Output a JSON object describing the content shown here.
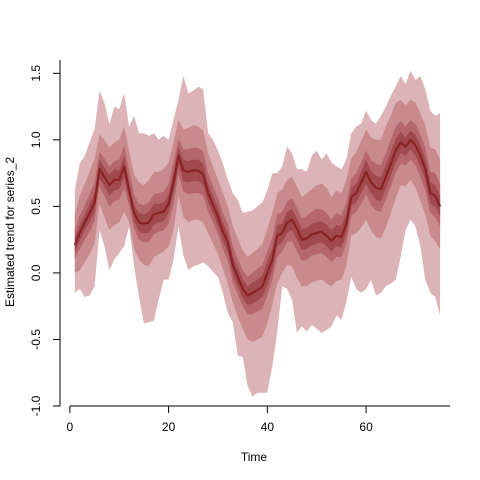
{
  "chart_data": {
    "type": "area",
    "title": "",
    "xlabel": "Time",
    "ylabel": "Estimated trend for series_2",
    "xlim": [
      -2,
      77
    ],
    "ylim": [
      -1.0,
      1.6
    ],
    "x_ticks": [
      0,
      20,
      40,
      60
    ],
    "y_ticks": [
      -1.0,
      -0.5,
      0.0,
      0.5,
      1.0,
      1.5
    ],
    "x_tick_labels": [
      "0",
      "20",
      "40",
      "60"
    ],
    "y_tick_labels": [
      "-1.0",
      "-0.5",
      "0.0",
      "0.5",
      "1.0",
      "1.5"
    ],
    "grid": false,
    "colors": {
      "outer_band": "#dcb3b6",
      "mid_outer_band": "#c98a8e",
      "mid_inner_band": "#b5676c",
      "inner_band": "#a04a4f",
      "median_line": "#8b2326"
    },
    "x": [
      1,
      2,
      3,
      4,
      5,
      6,
      7,
      8,
      9,
      10,
      11,
      12,
      13,
      14,
      15,
      16,
      17,
      18,
      19,
      20,
      21,
      22,
      23,
      24,
      25,
      26,
      27,
      28,
      29,
      30,
      31,
      32,
      33,
      34,
      35,
      36,
      37,
      38,
      39,
      40,
      41,
      42,
      43,
      44,
      45,
      46,
      47,
      48,
      49,
      50,
      51,
      52,
      53,
      54,
      55,
      56,
      57,
      58,
      59,
      60,
      61,
      62,
      63,
      64,
      65,
      66,
      67,
      68,
      69,
      70,
      71,
      72,
      73,
      74,
      75
    ],
    "median": [
      0.21,
      0.3,
      0.38,
      0.45,
      0.53,
      0.78,
      0.72,
      0.66,
      0.7,
      0.7,
      0.8,
      0.62,
      0.45,
      0.38,
      0.37,
      0.38,
      0.44,
      0.45,
      0.46,
      0.52,
      0.68,
      0.88,
      0.77,
      0.76,
      0.77,
      0.77,
      0.74,
      0.6,
      0.51,
      0.42,
      0.31,
      0.23,
      0.06,
      -0.03,
      -0.12,
      -0.17,
      -0.15,
      -0.13,
      -0.1,
      0.0,
      0.1,
      0.28,
      0.3,
      0.38,
      0.4,
      0.33,
      0.25,
      0.26,
      0.29,
      0.3,
      0.31,
      0.28,
      0.24,
      0.28,
      0.27,
      0.37,
      0.57,
      0.6,
      0.68,
      0.76,
      0.68,
      0.64,
      0.63,
      0.72,
      0.82,
      0.92,
      0.98,
      0.95,
      1.0,
      0.96,
      0.88,
      0.78,
      0.6,
      0.58,
      0.5
    ],
    "series": [
      {
        "lower": [
          -0.15,
          -0.12,
          -0.18,
          -0.17,
          -0.1,
          0.32,
          0.2,
          0.02,
          0.1,
          0.15,
          0.2,
          0.35,
          0.05,
          -0.18,
          -0.38,
          -0.37,
          -0.36,
          -0.2,
          -0.05,
          -0.05,
          0.1,
          0.35,
          0.13,
          0.02,
          0.05,
          0.06,
          0.08,
          0.05,
          0.01,
          -0.03,
          -0.15,
          -0.3,
          -0.37,
          -0.62,
          -0.63,
          -0.85,
          -0.93,
          -0.9,
          -0.9,
          -0.9,
          -0.7,
          -0.45,
          -0.1,
          -0.12,
          -0.2,
          -0.45,
          -0.4,
          -0.44,
          -0.39,
          -0.42,
          -0.45,
          -0.43,
          -0.4,
          -0.32,
          -0.35,
          -0.22,
          -0.03,
          -0.12,
          -0.15,
          -0.12,
          -0.05,
          -0.17,
          -0.15,
          -0.1,
          -0.08,
          -0.05,
          0.12,
          0.32,
          0.4,
          0.35,
          0.2,
          -0.05,
          -0.15,
          -0.18,
          -0.32
        ],
        "upper": [
          0.62,
          0.82,
          0.88,
          0.98,
          1.08,
          1.37,
          1.28,
          1.12,
          1.25,
          1.23,
          1.35,
          1.1,
          1.18,
          1.05,
          1.05,
          1.03,
          1.05,
          1.0,
          1.03,
          1.0,
          1.15,
          1.3,
          1.48,
          1.35,
          1.37,
          1.4,
          1.38,
          1.05,
          1.0,
          0.92,
          0.82,
          0.7,
          0.6,
          0.55,
          0.45,
          0.46,
          0.47,
          0.5,
          0.53,
          0.62,
          0.75,
          0.75,
          0.8,
          0.95,
          0.9,
          0.78,
          0.78,
          0.76,
          0.88,
          0.92,
          0.85,
          0.9,
          0.83,
          0.8,
          0.78,
          0.85,
          1.05,
          1.1,
          1.12,
          1.22,
          1.15,
          1.12,
          1.18,
          1.25,
          1.33,
          1.4,
          1.48,
          1.42,
          1.52,
          1.45,
          1.48,
          1.38,
          1.22,
          1.18,
          1.2
        ]
      },
      {
        "lower": [
          0.0,
          0.02,
          0.08,
          0.14,
          0.22,
          0.52,
          0.42,
          0.32,
          0.36,
          0.38,
          0.46,
          0.38,
          0.18,
          0.1,
          0.06,
          0.05,
          0.12,
          0.14,
          0.16,
          0.2,
          0.32,
          0.58,
          0.42,
          0.38,
          0.4,
          0.4,
          0.38,
          0.3,
          0.22,
          0.14,
          0.03,
          -0.08,
          -0.22,
          -0.33,
          -0.42,
          -0.5,
          -0.52,
          -0.5,
          -0.48,
          -0.38,
          -0.24,
          -0.08,
          0.0,
          0.06,
          0.05,
          -0.04,
          -0.1,
          -0.1,
          -0.07,
          -0.06,
          -0.05,
          -0.08,
          -0.1,
          -0.06,
          -0.05,
          0.05,
          0.28,
          0.3,
          0.34,
          0.4,
          0.32,
          0.27,
          0.26,
          0.34,
          0.45,
          0.56,
          0.66,
          0.65,
          0.7,
          0.64,
          0.54,
          0.44,
          0.28,
          0.24,
          0.18
        ],
        "upper": [
          0.44,
          0.58,
          0.67,
          0.76,
          0.86,
          1.04,
          1.0,
          0.94,
          0.98,
          1.0,
          1.1,
          0.92,
          0.74,
          0.68,
          0.66,
          0.7,
          0.76,
          0.76,
          0.78,
          0.83,
          0.98,
          1.15,
          1.08,
          1.09,
          1.11,
          1.1,
          1.07,
          0.9,
          0.8,
          0.7,
          0.6,
          0.5,
          0.35,
          0.26,
          0.17,
          0.12,
          0.15,
          0.18,
          0.22,
          0.33,
          0.45,
          0.6,
          0.63,
          0.7,
          0.72,
          0.65,
          0.57,
          0.6,
          0.63,
          0.66,
          0.67,
          0.64,
          0.57,
          0.62,
          0.6,
          0.7,
          0.86,
          0.91,
          0.99,
          1.08,
          1.02,
          1.0,
          1.0,
          1.1,
          1.18,
          1.28,
          1.3,
          1.26,
          1.3,
          1.28,
          1.2,
          1.11,
          0.94,
          0.93,
          0.85
        ]
      },
      {
        "lower": [
          0.11,
          0.18,
          0.25,
          0.31,
          0.39,
          0.65,
          0.58,
          0.5,
          0.54,
          0.55,
          0.64,
          0.51,
          0.33,
          0.25,
          0.23,
          0.23,
          0.29,
          0.31,
          0.32,
          0.37,
          0.52,
          0.74,
          0.61,
          0.59,
          0.6,
          0.6,
          0.58,
          0.46,
          0.38,
          0.29,
          0.18,
          0.09,
          -0.07,
          -0.16,
          -0.25,
          -0.31,
          -0.31,
          -0.29,
          -0.27,
          -0.17,
          -0.05,
          0.12,
          0.16,
          0.23,
          0.24,
          0.16,
          0.09,
          0.1,
          0.13,
          0.14,
          0.15,
          0.12,
          0.08,
          0.12,
          0.12,
          0.22,
          0.43,
          0.46,
          0.52,
          0.59,
          0.51,
          0.47,
          0.46,
          0.55,
          0.65,
          0.75,
          0.82,
          0.81,
          0.85,
          0.81,
          0.72,
          0.62,
          0.45,
          0.42,
          0.35
        ],
        "upper": [
          0.32,
          0.43,
          0.51,
          0.59,
          0.68,
          0.91,
          0.86,
          0.8,
          0.84,
          0.85,
          0.96,
          0.77,
          0.59,
          0.52,
          0.51,
          0.53,
          0.59,
          0.6,
          0.61,
          0.67,
          0.83,
          1.01,
          0.93,
          0.93,
          0.94,
          0.94,
          0.91,
          0.75,
          0.65,
          0.56,
          0.45,
          0.37,
          0.2,
          0.11,
          0.02,
          -0.03,
          0.0,
          0.03,
          0.06,
          0.16,
          0.27,
          0.44,
          0.46,
          0.54,
          0.56,
          0.49,
          0.41,
          0.43,
          0.46,
          0.48,
          0.48,
          0.45,
          0.4,
          0.45,
          0.43,
          0.53,
          0.71,
          0.75,
          0.83,
          0.92,
          0.85,
          0.82,
          0.81,
          0.9,
          1.0,
          1.1,
          1.14,
          1.1,
          1.15,
          1.12,
          1.04,
          0.94,
          0.76,
          0.75,
          0.67
        ]
      },
      {
        "lower": [
          0.16,
          0.24,
          0.32,
          0.38,
          0.46,
          0.71,
          0.65,
          0.58,
          0.62,
          0.63,
          0.72,
          0.56,
          0.39,
          0.31,
          0.3,
          0.3,
          0.36,
          0.38,
          0.39,
          0.45,
          0.6,
          0.81,
          0.69,
          0.68,
          0.69,
          0.69,
          0.66,
          0.53,
          0.44,
          0.35,
          0.24,
          0.16,
          -0.01,
          -0.1,
          -0.19,
          -0.24,
          -0.23,
          -0.21,
          -0.18,
          -0.09,
          0.02,
          0.2,
          0.23,
          0.3,
          0.32,
          0.25,
          0.17,
          0.18,
          0.21,
          0.22,
          0.23,
          0.2,
          0.16,
          0.2,
          0.19,
          0.29,
          0.5,
          0.53,
          0.6,
          0.67,
          0.6,
          0.55,
          0.54,
          0.63,
          0.73,
          0.83,
          0.9,
          0.88,
          0.93,
          0.88,
          0.8,
          0.7,
          0.52,
          0.5,
          0.42
        ],
        "upper": [
          0.26,
          0.36,
          0.44,
          0.52,
          0.6,
          0.85,
          0.79,
          0.74,
          0.78,
          0.77,
          0.88,
          0.68,
          0.51,
          0.45,
          0.44,
          0.46,
          0.52,
          0.52,
          0.53,
          0.59,
          0.76,
          0.95,
          0.85,
          0.84,
          0.85,
          0.85,
          0.82,
          0.67,
          0.58,
          0.49,
          0.38,
          0.3,
          0.13,
          0.04,
          -0.05,
          -0.1,
          -0.07,
          -0.05,
          -0.02,
          0.09,
          0.18,
          0.36,
          0.37,
          0.46,
          0.48,
          0.41,
          0.33,
          0.34,
          0.37,
          0.38,
          0.39,
          0.36,
          0.32,
          0.36,
          0.35,
          0.45,
          0.64,
          0.67,
          0.76,
          0.85,
          0.76,
          0.73,
          0.72,
          0.81,
          0.91,
          1.01,
          1.06,
          1.02,
          1.07,
          1.04,
          0.96,
          0.86,
          0.68,
          0.66,
          0.58
        ]
      }
    ]
  }
}
